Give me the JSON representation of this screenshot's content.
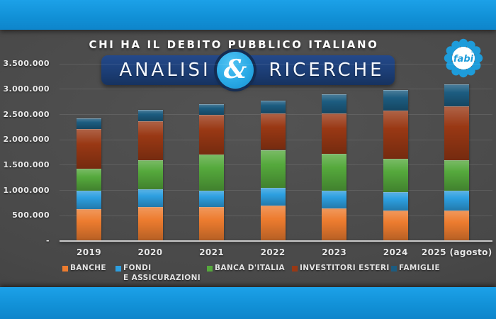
{
  "header": {
    "title": "CHI HA IL DEBITO PUBBLICO ITALIANO"
  },
  "banner": {
    "left": "ANALISI",
    "ampersand": "&",
    "right": "RICERCHE"
  },
  "logo": {
    "text": "fabi",
    "registered": "®"
  },
  "chart_data": {
    "type": "bar",
    "stacked": true,
    "title": "CHI HA IL DEBITO PUBBLICO ITALIANO",
    "categories": [
      "2019",
      "2020",
      "2021",
      "2022",
      "2023",
      "2024",
      "2025 (agosto)"
    ],
    "series": [
      {
        "name": "BANCHE",
        "color": "#ED7C2F",
        "values": [
          630000,
          670000,
          670000,
          695000,
          640000,
          600000,
          600000
        ]
      },
      {
        "name": "FONDI E ASSICURAZIONI",
        "color": "#2D9FE0",
        "values": [
          370000,
          350000,
          330000,
          360000,
          360000,
          360000,
          400000
        ]
      },
      {
        "name": "BANCA D'ITALIA",
        "color": "#55A93C",
        "values": [
          430000,
          575000,
          710000,
          745000,
          720000,
          670000,
          600000
        ]
      },
      {
        "name": "INVESTITORI ESTERI",
        "color": "#993814",
        "values": [
          790000,
          770000,
          780000,
          715000,
          795000,
          950000,
          1055000
        ]
      },
      {
        "name": "FAMIGLIE",
        "color": "#1C5C80",
        "values": [
          200000,
          225000,
          210000,
          255000,
          390000,
          400000,
          445000
        ]
      }
    ],
    "totals": [
      2420000,
      2590000,
      2700000,
      2770000,
      2905000,
      2980000,
      3100000
    ],
    "y_ticks": {
      "labels": [
        "3.500.000",
        "3.000.000",
        "2.500.000",
        "2.000.000",
        "1.500.000",
        "1.000.000",
        "500.000",
        "-"
      ],
      "values": [
        3500000,
        3000000,
        2500000,
        2000000,
        1500000,
        1000000,
        500000,
        0
      ]
    },
    "ylim": [
      0,
      3500000
    ],
    "grid": true,
    "legend_position": "bottom",
    "legend": [
      {
        "color": "#ED7C2F",
        "lines": [
          "BANCHE"
        ]
      },
      {
        "color": "#2D9FE0",
        "lines": [
          "FONDI",
          "E ASSICURAZIONI"
        ]
      },
      {
        "color": "#55A93C",
        "lines": [
          "BANCA D'ITALIA"
        ]
      },
      {
        "color": "#993814",
        "lines": [
          "INVESTITORI ESTERI"
        ]
      },
      {
        "color": "#1C5C80",
        "lines": [
          "FAMIGLIE"
        ]
      }
    ]
  }
}
